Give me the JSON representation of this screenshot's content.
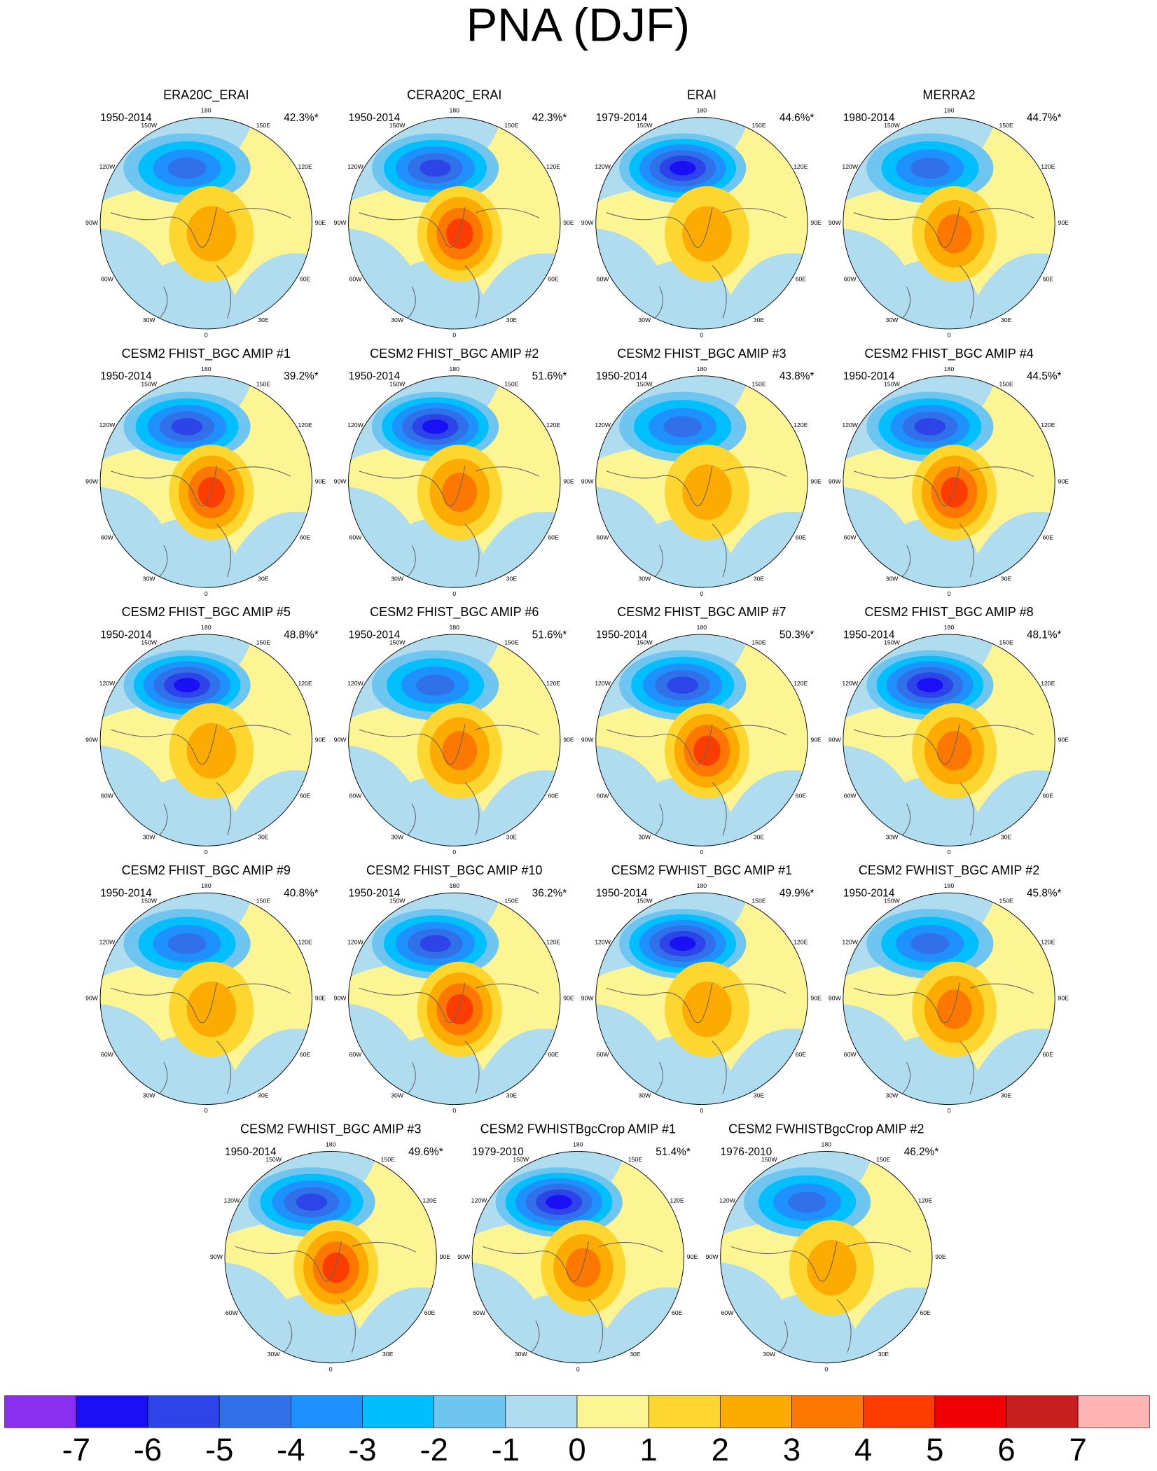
{
  "chart_data": {
    "type": "map-grid",
    "title": "PNA (DJF)",
    "panels": [
      {
        "title": "ERA20C_ERAI",
        "period": "1950-2014",
        "stat": "42.3%*"
      },
      {
        "title": "CERA20C_ERAI",
        "period": "1950-2014",
        "stat": "42.3%*"
      },
      {
        "title": "ERAI",
        "period": "1979-2014",
        "stat": "44.6%*"
      },
      {
        "title": "MERRA2",
        "period": "1980-2014",
        "stat": "44.7%*"
      },
      {
        "title": "CESM2 FHIST_BGC AMIP #1",
        "period": "1950-2014",
        "stat": "39.2%*"
      },
      {
        "title": "CESM2 FHIST_BGC AMIP #2",
        "period": "1950-2014",
        "stat": "51.6%*"
      },
      {
        "title": "CESM2 FHIST_BGC AMIP #3",
        "period": "1950-2014",
        "stat": "43.8%*"
      },
      {
        "title": "CESM2 FHIST_BGC AMIP #4",
        "period": "1950-2014",
        "stat": "44.5%*"
      },
      {
        "title": "CESM2 FHIST_BGC AMIP #5",
        "period": "1950-2014",
        "stat": "48.8%*"
      },
      {
        "title": "CESM2 FHIST_BGC AMIP #6",
        "period": "1950-2014",
        "stat": "51.6%*"
      },
      {
        "title": "CESM2 FHIST_BGC AMIP #7",
        "period": "1950-2014",
        "stat": "50.3%*"
      },
      {
        "title": "CESM2 FHIST_BGC AMIP #8",
        "period": "1950-2014",
        "stat": "48.1%*"
      },
      {
        "title": "CESM2 FHIST_BGC AMIP #9",
        "period": "1950-2014",
        "stat": "40.8%*"
      },
      {
        "title": "CESM2 FHIST_BGC AMIP #10",
        "period": "1950-2014",
        "stat": "36.2%*"
      },
      {
        "title": "CESM2 FWHIST_BGC AMIP #1",
        "period": "1950-2014",
        "stat": "49.9%*"
      },
      {
        "title": "CESM2 FWHIST_BGC AMIP #2",
        "period": "1950-2014",
        "stat": "45.8%*"
      },
      {
        "title": "CESM2 FWHIST_BGC AMIP #3",
        "period": "1950-2014",
        "stat": "49.6%*"
      },
      {
        "title": "CESM2 FWHISTBgcCrop AMIP #1",
        "period": "1979-2010",
        "stat": "51.4%*"
      },
      {
        "title": "CESM2 FWHISTBgcCrop AMIP #2",
        "period": "1976-2010",
        "stat": "46.2%*"
      }
    ],
    "lon_labels": [
      "180",
      "150E",
      "120E",
      "90E",
      "60E",
      "30E",
      "0",
      "30W",
      "60W",
      "90W",
      "120W",
      "150W"
    ],
    "colorbar": {
      "colors": [
        "#8a2ef0",
        "#1a10f5",
        "#2c44e8",
        "#3070e8",
        "#1e90ff",
        "#00bfff",
        "#6ec6f0",
        "#b0dcf0",
        "#fdf594",
        "#fdd72f",
        "#fdab00",
        "#fd7800",
        "#fd3c00",
        "#f00000",
        "#c81e1e",
        "#ffb4b4"
      ],
      "labels": [
        -7,
        -6,
        -5,
        -4,
        -3,
        -2,
        -1,
        0,
        1,
        2,
        3,
        4,
        5,
        6,
        7
      ]
    }
  }
}
